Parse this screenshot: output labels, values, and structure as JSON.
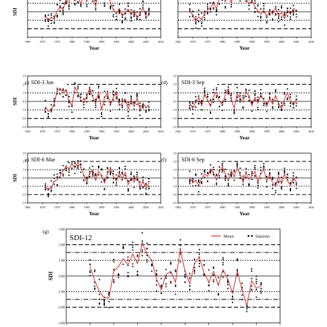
{
  "figure": {
    "legend": {
      "mean": "Mean",
      "stations": "Stations"
    },
    "colors": {
      "mean_line": "#d63a3a",
      "station_dot": "#000000",
      "axis": "#000000"
    }
  },
  "chart_data": [
    {
      "id": "a",
      "panel_label": "",
      "title": "",
      "type": "line",
      "xlabel": "Year",
      "ylabel": "SDI",
      "xlim": [
        1965,
        2010
      ],
      "xticks": [
        "1965",
        "1970",
        "1975",
        "1980",
        "1985",
        "1990",
        "1995",
        "2000",
        "2005",
        "2010"
      ],
      "yticks": [],
      "ref_lines": [
        {
          "y": 2.0,
          "style": "dash"
        },
        {
          "y": 1.0,
          "style": "dot"
        },
        {
          "y": 0.0,
          "style": "solid"
        },
        {
          "y": -1.0,
          "style": "dot"
        },
        {
          "y": -2.0,
          "style": "dash"
        }
      ],
      "series": [
        {
          "name": "Mean",
          "x": [
            1971,
            1972,
            1973,
            1974,
            1975,
            1976,
            1977,
            1978,
            1979,
            1980,
            1981,
            1982,
            1983,
            1984,
            1985,
            1986,
            1987,
            1988,
            1989,
            1990,
            1991,
            1992,
            1993,
            1994,
            1995,
            1996,
            1997,
            1998,
            1999,
            2000,
            2001,
            2002,
            2003,
            2004,
            2005,
            2006
          ],
          "y": [
            -0.5,
            -1.0,
            -0.7,
            -0.8,
            0.1,
            0.6,
            0.2,
            1.5,
            1.0,
            2.3,
            1.4,
            1.8,
            0.9,
            2.0,
            1.2,
            2.5,
            2.0,
            0.6,
            2.6,
            1.9,
            1.4,
            2.2,
            1.1,
            0.2,
            -0.2,
            0.4,
            -0.5,
            -0.1,
            0.3,
            -0.4,
            0.2,
            -0.7,
            -0.3,
            0.5,
            -0.6,
            -0.4
          ]
        }
      ]
    },
    {
      "id": "b",
      "panel_label": "",
      "title": "",
      "type": "line",
      "xlabel": "Year",
      "ylabel": "",
      "xlim": [
        1965,
        2010
      ],
      "xticks": [
        "1965",
        "1970",
        "1975",
        "1980",
        "1985",
        "1990",
        "1995",
        "2000",
        "2005",
        "2010"
      ],
      "yticks": [],
      "ref_lines": [
        {
          "y": 2.0,
          "style": "dash"
        },
        {
          "y": 1.0,
          "style": "dot"
        },
        {
          "y": 0.0,
          "style": "solid"
        },
        {
          "y": -1.0,
          "style": "dot"
        },
        {
          "y": -2.0,
          "style": "dash"
        }
      ],
      "series": [
        {
          "name": "Mean",
          "x": [
            1969,
            1970,
            1971,
            1972,
            1973,
            1974,
            1975,
            1976,
            1977,
            1978,
            1979,
            1980,
            1981,
            1982,
            1983,
            1984,
            1985,
            1986,
            1987,
            1988,
            1989,
            1990,
            1991,
            1992,
            1993,
            1994,
            1995,
            1996,
            1997,
            1998,
            1999,
            2000,
            2001,
            2002,
            2003,
            2004,
            2005
          ],
          "y": [
            0.1,
            -0.4,
            -1.2,
            -0.6,
            -0.9,
            -0.2,
            0.2,
            0.5,
            1.0,
            0.4,
            1.6,
            2.1,
            1.2,
            2.4,
            1.0,
            2.6,
            2.3,
            1.8,
            2.5,
            1.5,
            0.9,
            1.3,
            0.6,
            0.1,
            -0.3,
            0.2,
            -0.6,
            0.1,
            -0.2,
            0.4,
            -0.5,
            -0.1,
            -0.8,
            0.2,
            -0.3,
            0.4,
            0.1
          ]
        }
      ]
    },
    {
      "id": "c",
      "panel_label": "c)",
      "title": "SDI-3 Jun",
      "type": "line",
      "xlabel": "Year",
      "ylabel": "SDI",
      "xlim": [
        1965,
        2010
      ],
      "xticks": [
        "1965",
        "1970",
        "1975",
        "1980",
        "1985",
        "1990",
        "1995",
        "2000",
        "2005",
        "2010"
      ],
      "yticks": [
        "3.0",
        "2.0",
        "1.0",
        "0.0",
        "-1.0",
        "-2.0",
        "-3.0"
      ],
      "ref_lines": [
        {
          "y": 2.0,
          "style": "dash"
        },
        {
          "y": 1.0,
          "style": "dot"
        },
        {
          "y": 0.0,
          "style": "solid"
        },
        {
          "y": -1.0,
          "style": "dot"
        },
        {
          "y": -2.0,
          "style": "dash"
        }
      ],
      "series": [
        {
          "name": "Mean",
          "x": [
            1971,
            1972,
            1973,
            1974,
            1975,
            1976,
            1977,
            1978,
            1979,
            1980,
            1981,
            1982,
            1983,
            1984,
            1985,
            1986,
            1987,
            1988,
            1989,
            1990,
            1991,
            1992,
            1993,
            1994,
            1995,
            1996,
            1997,
            1998,
            1999,
            2000,
            2001,
            2002,
            2003,
            2004,
            2005,
            2006
          ],
          "y": [
            -0.6,
            -1.2,
            -0.9,
            -0.3,
            1.3,
            1.5,
            1.0,
            1.4,
            0.2,
            -0.5,
            1.7,
            1.0,
            0.2,
            -0.2,
            0.6,
            1.6,
            0.5,
            -0.3,
            1.2,
            -1.0,
            0.4,
            1.0,
            -0.4,
            0.5,
            1.1,
            -0.5,
            -0.2,
            0.3,
            -0.9,
            0.2,
            -0.6,
            0.4,
            -1.0,
            -0.2,
            -0.7,
            -0.4
          ]
        }
      ]
    },
    {
      "id": "d",
      "panel_label": "(d)",
      "title": "SDI-3 Sep",
      "type": "line",
      "xlabel": "Year",
      "ylabel": "",
      "xlim": [
        1965,
        2010
      ],
      "xticks": [
        "1965",
        "1970",
        "1975",
        "1980",
        "1985",
        "1990",
        "1995",
        "2000",
        "2005",
        "2010"
      ],
      "yticks": [
        "3.0",
        "2.0",
        "1.0",
        "0.0",
        "-1.0",
        "-2.0",
        "-3.0"
      ],
      "ref_lines": [
        {
          "y": 2.0,
          "style": "dash"
        },
        {
          "y": 1.0,
          "style": "dot"
        },
        {
          "y": 0.0,
          "style": "solid"
        },
        {
          "y": -1.0,
          "style": "dot"
        },
        {
          "y": -2.0,
          "style": "dash"
        }
      ],
      "series": [
        {
          "name": "Mean",
          "x": [
            1969,
            1970,
            1971,
            1972,
            1973,
            1974,
            1975,
            1976,
            1977,
            1978,
            1979,
            1980,
            1981,
            1982,
            1983,
            1984,
            1985,
            1986,
            1987,
            1988,
            1989,
            1990,
            1991,
            1992,
            1993,
            1994,
            1995,
            1996,
            1997,
            1998,
            1999,
            2000,
            2001,
            2002,
            2003,
            2004,
            2005
          ],
          "y": [
            -0.2,
            -0.8,
            -0.1,
            0.4,
            -0.5,
            0.9,
            0.2,
            -0.6,
            0.6,
            1.1,
            0.0,
            -0.4,
            0.8,
            1.5,
            0.3,
            -0.8,
            0.9,
            0.4,
            -0.1,
            1.2,
            0.6,
            -0.5,
            0.5,
            -0.2,
            0.8,
            0.1,
            -0.6,
            0.4,
            -0.3,
            0.7,
            -0.2,
            -0.9,
            0.3,
            1.0,
            0.1,
            -0.4,
            0.2
          ]
        }
      ]
    },
    {
      "id": "e",
      "panel_label": "e)",
      "title": "SDI-6 Mar",
      "type": "line",
      "xlabel": "Year",
      "ylabel": "SDI",
      "xlim": [
        1965,
        2010
      ],
      "xticks": [
        "1965",
        "1970",
        "1975",
        "1980",
        "1985",
        "1990",
        "1995",
        "2000",
        "2005",
        "2010"
      ],
      "yticks": [
        "3.0",
        "2.0",
        "1.0",
        "0.0",
        "-1.0",
        "-2.0",
        "-3.0"
      ],
      "ref_lines": [
        {
          "y": 2.0,
          "style": "dash"
        },
        {
          "y": 1.0,
          "style": "dot"
        },
        {
          "y": 0.0,
          "style": "solid"
        },
        {
          "y": -1.0,
          "style": "dot"
        },
        {
          "y": -2.0,
          "style": "dash"
        }
      ],
      "series": [
        {
          "name": "Mean",
          "x": [
            1971,
            1972,
            1973,
            1974,
            1975,
            1976,
            1977,
            1978,
            1979,
            1980,
            1981,
            1982,
            1983,
            1984,
            1985,
            1986,
            1987,
            1988,
            1989,
            1990,
            1991,
            1992,
            1993,
            1994,
            1995,
            1996,
            1997,
            1998,
            1999,
            2000,
            2001,
            2002,
            2003,
            2004,
            2005,
            2006
          ],
          "y": [
            -1.0,
            -1.5,
            -1.1,
            -0.4,
            -0.2,
            0.3,
            0.9,
            1.4,
            1.1,
            1.7,
            1.2,
            1.9,
            1.3,
            0.4,
            -0.5,
            0.6,
            1.0,
            -0.2,
            0.8,
            0.3,
            -0.6,
            0.5,
            1.2,
            0.2,
            -0.4,
            0.6,
            -0.1,
            0.7,
            -0.8,
            0.1,
            -0.5,
            0.3,
            -1.1,
            -0.4,
            -1.3,
            -0.6
          ]
        }
      ]
    },
    {
      "id": "f",
      "panel_label": "(f)",
      "title": "SDI-6 Sep",
      "type": "line",
      "xlabel": "Year",
      "ylabel": "",
      "xlim": [
        1965,
        2010
      ],
      "xticks": [
        "1965",
        "1970",
        "1975",
        "1980",
        "1985",
        "1990",
        "1995",
        "2000",
        "2005",
        "2010"
      ],
      "yticks": [
        "3.0",
        "2.0",
        "1.0",
        "0.0",
        "-1.0",
        "-2.0",
        "-3.0"
      ],
      "ref_lines": [
        {
          "y": 2.0,
          "style": "dash"
        },
        {
          "y": 1.0,
          "style": "dot"
        },
        {
          "y": 0.0,
          "style": "solid"
        },
        {
          "y": -1.0,
          "style": "dot"
        },
        {
          "y": -2.0,
          "style": "dash"
        }
      ],
      "series": [
        {
          "name": "Mean",
          "x": [
            1969,
            1970,
            1971,
            1972,
            1973,
            1974,
            1975,
            1976,
            1977,
            1978,
            1979,
            1980,
            1981,
            1982,
            1983,
            1984,
            1985,
            1986,
            1987,
            1988,
            1989,
            1990,
            1991,
            1992,
            1993,
            1994,
            1995,
            1996,
            1997,
            1998,
            1999,
            2000,
            2001,
            2002,
            2003,
            2004,
            2005
          ],
          "y": [
            0.1,
            -0.6,
            -0.3,
            -0.9,
            -0.1,
            0.5,
            0.2,
            1.1,
            0.6,
            -0.2,
            0.8,
            1.4,
            0.5,
            -0.3,
            0.9,
            0.2,
            1.2,
            0.4,
            -0.5,
            0.7,
            -0.2,
            0.3,
            0.8,
            -0.4,
            0.6,
            1.0,
            -0.3,
            0.4,
            -0.6,
            -1.0,
            0.2,
            -0.7,
            0.5,
            -0.3,
            -0.9,
            0.1,
            -0.5
          ]
        }
      ]
    },
    {
      "id": "g",
      "panel_label": "(g)",
      "title": "SDI-12",
      "type": "line",
      "xlabel": "",
      "ylabel": "SDI",
      "ylim": [
        -3.0,
        3.0
      ],
      "xlim": [
        1965,
        2010
      ],
      "yticks": [
        "3.00",
        "2.00",
        "1.00",
        "0.00",
        "-1.00",
        "-2.00",
        "-3.00"
      ],
      "ref_lines": [
        {
          "y": 2.0,
          "style": "dash"
        },
        {
          "y": 1.5,
          "style": "dashdot"
        },
        {
          "y": 1.0,
          "style": "dot"
        },
        {
          "y": 0.0,
          "style": "solid"
        },
        {
          "y": -1.0,
          "style": "dot"
        },
        {
          "y": -1.5,
          "style": "dashdot"
        },
        {
          "y": -2.0,
          "style": "dash"
        }
      ],
      "series": [
        {
          "name": "Mean",
          "x": [
            1970,
            1971,
            1972,
            1973,
            1974,
            1975,
            1976,
            1977,
            1978,
            1979,
            1980,
            1981,
            1982,
            1983,
            1984,
            1985,
            1986,
            1987,
            1988,
            1989,
            1990,
            1991,
            1992,
            1993,
            1994,
            1995,
            1996,
            1997,
            1998,
            1999,
            2000,
            2001,
            2002,
            2003,
            2004,
            2005,
            2006
          ],
          "y": [
            0.6,
            -0.3,
            -1.0,
            -1.4,
            -1.4,
            0.3,
            0.6,
            1.1,
            0.7,
            1.4,
            0.8,
            2.1,
            1.4,
            1.0,
            -0.2,
            -0.9,
            0.1,
            0.3,
            -0.4,
            1.7,
            0.3,
            -0.5,
            0.8,
            1.2,
            0.2,
            -0.4,
            0.3,
            -0.6,
            0.4,
            -0.2,
            -1.1,
            0.3,
            -0.9,
            -1.9,
            -0.3,
            -0.8,
            -0.6
          ]
        }
      ]
    }
  ]
}
